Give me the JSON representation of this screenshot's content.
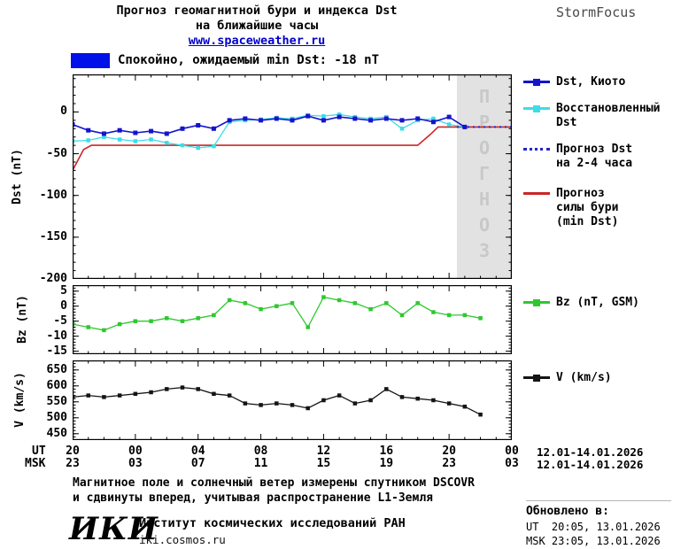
{
  "header": {
    "title_line1": "Прогноз геомагнитной бури и индекса Dst",
    "title_line2": "на ближайшие часы",
    "site_link": "www.spaceweather.ru",
    "brand": "StormFocus"
  },
  "status": {
    "label": "Спокойно, ожидаемый min Dst: -18 nT"
  },
  "colors": {
    "status_quiet": "#0010e8",
    "forecast_region_bg": "#e2e2e2",
    "forecast_region_text": "#c8c8c8",
    "link": "#0000cc"
  },
  "legend": {
    "dst_kyoto": "Dst, Киото",
    "restored": "Восстановленный\nDst",
    "forecast_dst": "Прогноз Dst\nна 2-4 часа",
    "storm": "Прогноз\nсилы бури\n(min Dst)",
    "bz": "Bz (nT, GSM)",
    "v": "V (km/s)"
  },
  "xaxis": {
    "ut_label": "UT",
    "msk_label": "MSK",
    "ut_date": "12.01-14.01.2026",
    "msk_date": "12.01-14.01.2026"
  },
  "footer": {
    "note_line1": "Магнитное поле и солнечный ветер измерены спутником DSCOVR",
    "note_line2": "и сдвинуты вперед, учитывая распространение L1-Земля",
    "logo": "ИКИ",
    "institute": "Институт космических исследований РАН",
    "site": "iki.cosmos.ru",
    "updated_label": "Обновлено в:",
    "updated_ut": "UT  20:05, 13.01.2026",
    "updated_msk": "MSK 23:05, 13.01.2026"
  },
  "chart_data": [
    {
      "id": "dst",
      "type": "line",
      "ylabel": "Dst (nT)",
      "xlim": [
        0,
        28
      ],
      "ylim": [
        -200,
        45
      ],
      "yticks": [
        0,
        -50,
        -100,
        -150,
        -200
      ],
      "yminor": 10,
      "xmajor": 4,
      "xminor": 1,
      "forecast_region": {
        "start": 24.5,
        "end": 28,
        "label": "ПРОГНОЗ"
      },
      "xticks": {
        "hours": [
          0,
          4,
          8,
          12,
          16,
          20,
          24,
          28
        ],
        "ut_labels": [
          "20",
          "00",
          "04",
          "08",
          "12",
          "16",
          "20",
          "00"
        ],
        "msk_labels": [
          "23",
          "03",
          "07",
          "11",
          "15",
          "19",
          "23",
          "03"
        ]
      },
      "series": [
        {
          "name": "Прогноз силы бури (min Dst)",
          "color": "#cc2626",
          "width": 1.6,
          "x": [
            0,
            0.7,
            1.2,
            22,
            22.8,
            23.3,
            28
          ],
          "values": [
            -70,
            -45,
            -40,
            -40,
            -27,
            -18,
            -18
          ]
        },
        {
          "name": "Восстановленный Dst",
          "color": "#3cdde8",
          "marker": "square",
          "msize": 4.5,
          "width": 1.3,
          "x": [
            0,
            1,
            2,
            3,
            4,
            5,
            6,
            7,
            8,
            9,
            10,
            11,
            12,
            13,
            14,
            15,
            16,
            17,
            18,
            19,
            20,
            21,
            22,
            23,
            24,
            25
          ],
          "values": [
            -35,
            -34,
            -30,
            -33,
            -35,
            -33,
            -37,
            -40,
            -43,
            -41,
            -12,
            -10,
            -9,
            -7,
            -8,
            -4,
            -5,
            -3,
            -6,
            -8,
            -6,
            -20,
            -10,
            -8,
            -15,
            -18
          ]
        },
        {
          "name": "Прогноз Dst на 2-4 часа",
          "color": "#2323cc",
          "style": "dotted",
          "width": 2,
          "x": [
            24.5,
            28
          ],
          "values": [
            -18,
            -18
          ]
        },
        {
          "name": "Dst, Киото",
          "color": "#1414cc",
          "marker": "square",
          "msize": 5,
          "width": 1.6,
          "x": [
            0,
            1,
            2,
            3,
            4,
            5,
            6,
            7,
            8,
            9,
            10,
            11,
            12,
            13,
            14,
            15,
            16,
            17,
            18,
            19,
            20,
            21,
            22,
            23,
            24,
            25
          ],
          "values": [
            -15,
            -22,
            -26,
            -22,
            -25,
            -23,
            -26,
            -20,
            -16,
            -20,
            -10,
            -8,
            -10,
            -8,
            -10,
            -5,
            -10,
            -6,
            -8,
            -10,
            -8,
            -10,
            -8,
            -12,
            -6,
            -18
          ]
        }
      ]
    },
    {
      "id": "bz",
      "type": "line",
      "ylabel": "Bz (nT)",
      "xlim": [
        0,
        28
      ],
      "ylim": [
        -16,
        7
      ],
      "yticks": [
        5,
        0,
        -5,
        -10,
        -15
      ],
      "yminor": 1,
      "xmajor": 4,
      "xminor": 1,
      "series": [
        {
          "name": "Bz (nT, GSM)",
          "color": "#2ec82e",
          "marker": "square",
          "msize": 4.5,
          "width": 1.3,
          "x": [
            0,
            1,
            2,
            3,
            4,
            5,
            6,
            7,
            8,
            9,
            10,
            11,
            12,
            13,
            14,
            15,
            16,
            17,
            18,
            19,
            20,
            21,
            22,
            23,
            24,
            25,
            26
          ],
          "values": [
            -6,
            -7,
            -8,
            -6,
            -5,
            -5,
            -4,
            -5,
            -4,
            -3,
            2,
            1,
            -1,
            0,
            1,
            -7,
            3,
            2,
            1,
            -1,
            1,
            -3,
            1,
            -2,
            -3,
            -3,
            -4
          ]
        }
      ]
    },
    {
      "id": "v",
      "type": "line",
      "ylabel": "V (km/s)",
      "xlim": [
        0,
        28
      ],
      "ylim": [
        430,
        680
      ],
      "yticks": [
        650,
        600,
        550,
        500,
        450
      ],
      "yminor": 10,
      "xmajor": 4,
      "xminor": 1,
      "series": [
        {
          "name": "V (km/s)",
          "color": "#141414",
          "marker": "square",
          "msize": 4.5,
          "width": 1.3,
          "x": [
            0,
            1,
            2,
            3,
            4,
            5,
            6,
            7,
            8,
            9,
            10,
            11,
            12,
            13,
            14,
            15,
            16,
            17,
            18,
            19,
            20,
            21,
            22,
            23,
            24,
            25,
            26
          ],
          "values": [
            565,
            570,
            565,
            570,
            575,
            580,
            590,
            595,
            590,
            575,
            570,
            545,
            540,
            545,
            540,
            530,
            555,
            570,
            545,
            555,
            590,
            565,
            560,
            555,
            545,
            535,
            510
          ]
        }
      ]
    }
  ]
}
